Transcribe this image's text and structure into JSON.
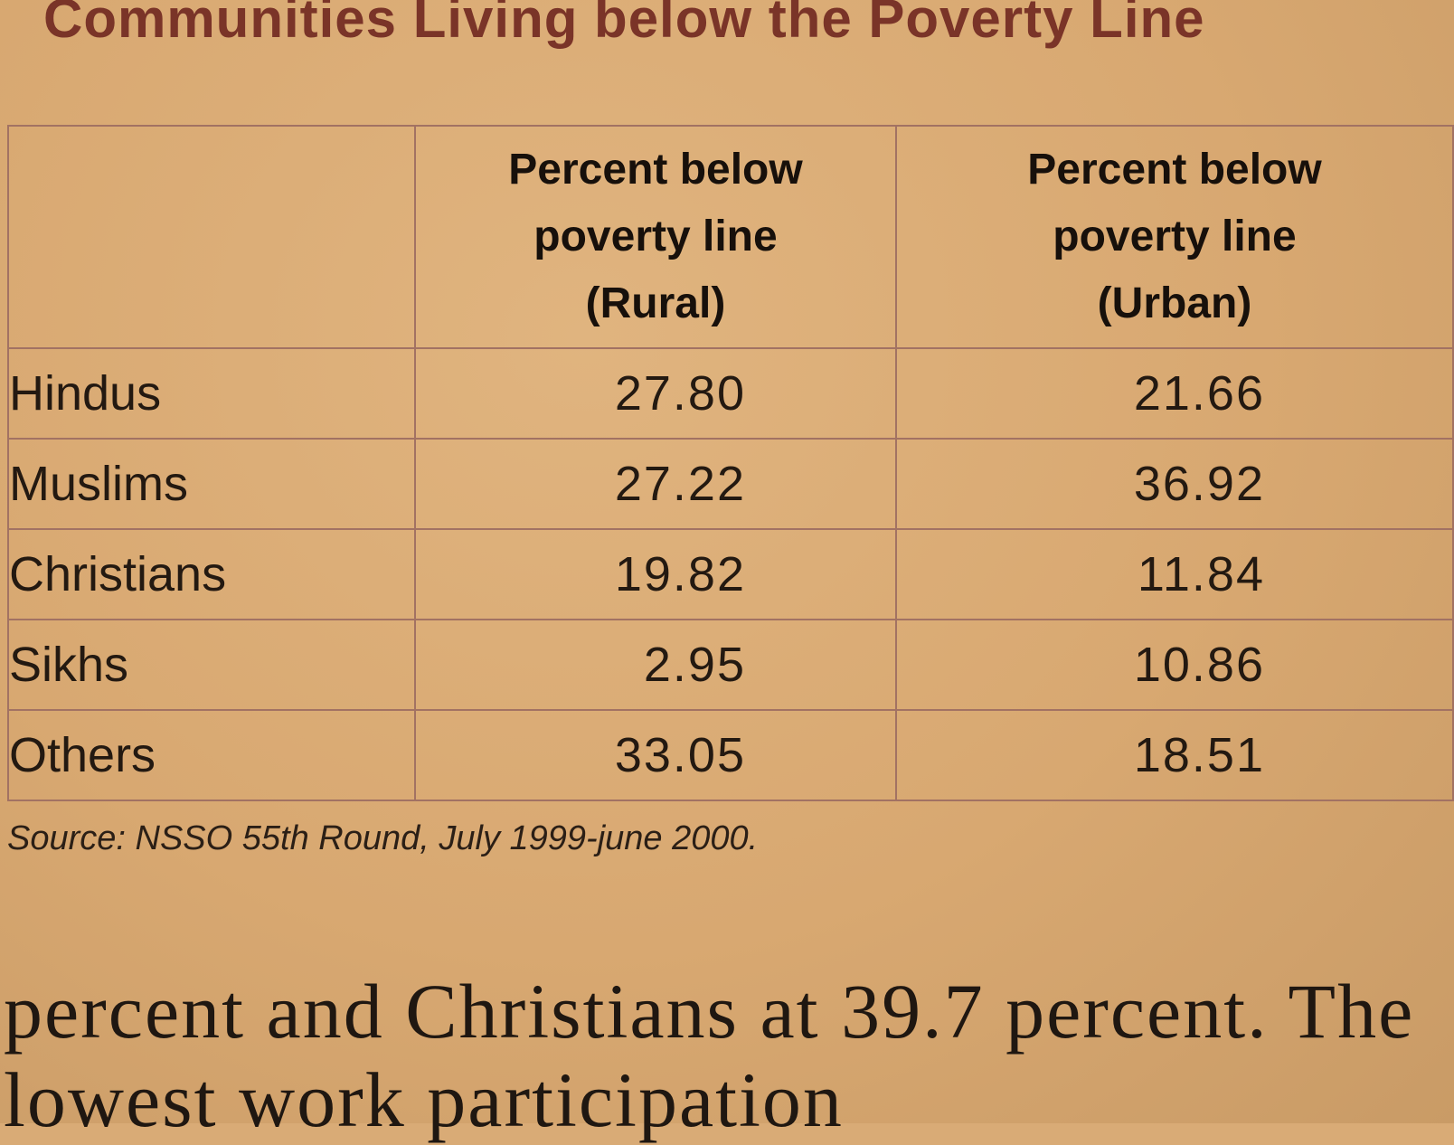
{
  "title": "Communities Living below the Poverty Line",
  "table": {
    "headers": [
      "",
      "Percent below poverty line (Rural)",
      "Percent below poverty line (Urban)"
    ],
    "header_lines": {
      "rural": [
        "Percent below",
        "poverty line",
        "(Rural)"
      ],
      "urban": [
        "Percent below",
        "poverty line",
        "(Urban)"
      ]
    },
    "rows": [
      {
        "community": "Hindus",
        "rural": "27.80",
        "urban": "21.66"
      },
      {
        "community": "Muslims",
        "rural": "27.22",
        "urban": "36.92"
      },
      {
        "community": "Christians",
        "rural": "19.82",
        "urban": "11.84"
      },
      {
        "community": "Sikhs",
        "rural": "2.95",
        "urban": "10.86"
      },
      {
        "community": "Others",
        "rural": "33.05",
        "urban": "18.51"
      }
    ]
  },
  "source": "Source: NSSO 55th Round, July 1999-june 2000.",
  "body_text": "percent and Christians at 39.7 percent. The",
  "body_text_2": "lowest work participation"
}
